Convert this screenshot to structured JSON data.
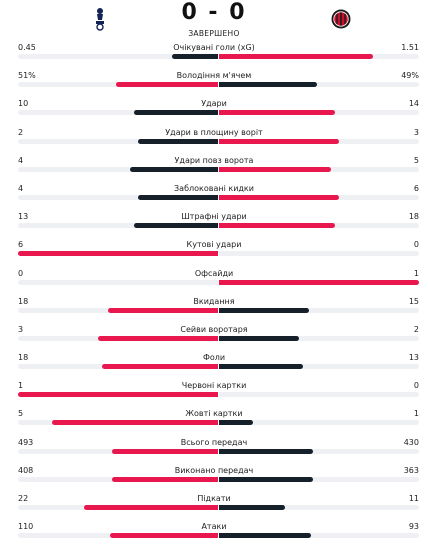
{
  "match": {
    "score": "0 - 0",
    "status": "ЗАВЕРШЕНО",
    "home_crest_icon": "tottenham-crest-icon",
    "away_crest_icon": "milan-crest-icon"
  },
  "colors": {
    "leader": "#e8184f",
    "trailer": "#15202b",
    "track": "#eef0f3"
  },
  "stats": [
    {
      "label": "Очікувані голи (xG)",
      "home": "0.45",
      "away": "1.51",
      "home_share": 0.23,
      "away_share": 0.77
    },
    {
      "label": "Володіння м'ячем",
      "home": "51%",
      "away": "49%",
      "home_share": 0.51,
      "away_share": 0.49
    },
    {
      "label": "Удари",
      "home": "10",
      "away": "14",
      "home_share": 0.42,
      "away_share": 0.58
    },
    {
      "label": "Удари в площину воріт",
      "home": "2",
      "away": "3",
      "home_share": 0.4,
      "away_share": 0.6
    },
    {
      "label": "Удари повз ворота",
      "home": "4",
      "away": "5",
      "home_share": 0.44,
      "away_share": 0.56
    },
    {
      "label": "Заблоковані кидки",
      "home": "4",
      "away": "6",
      "home_share": 0.4,
      "away_share": 0.6
    },
    {
      "label": "Штрафні удари",
      "home": "13",
      "away": "18",
      "home_share": 0.42,
      "away_share": 0.58
    },
    {
      "label": "Кутові удари",
      "home": "6",
      "away": "0",
      "home_share": 1.0,
      "away_share": 0.0
    },
    {
      "label": "Офсайди",
      "home": "0",
      "away": "1",
      "home_share": 0.0,
      "away_share": 1.0
    },
    {
      "label": "Вкидання",
      "home": "18",
      "away": "15",
      "home_share": 0.55,
      "away_share": 0.45
    },
    {
      "label": "Сейви воротаря",
      "home": "3",
      "away": "2",
      "home_share": 0.6,
      "away_share": 0.4
    },
    {
      "label": "Фоли",
      "home": "18",
      "away": "13",
      "home_share": 0.58,
      "away_share": 0.42
    },
    {
      "label": "Червоні картки",
      "home": "1",
      "away": "0",
      "home_share": 1.0,
      "away_share": 0.0
    },
    {
      "label": "Жовті картки",
      "home": "5",
      "away": "1",
      "home_share": 0.83,
      "away_share": 0.17
    },
    {
      "label": "Всього передач",
      "home": "493",
      "away": "430",
      "home_share": 0.53,
      "away_share": 0.47
    },
    {
      "label": "Виконано передач",
      "home": "408",
      "away": "363",
      "home_share": 0.53,
      "away_share": 0.47
    },
    {
      "label": "Підкати",
      "home": "22",
      "away": "11",
      "home_share": 0.67,
      "away_share": 0.33
    },
    {
      "label": "Атаки",
      "home": "110",
      "away": "93",
      "home_share": 0.54,
      "away_share": 0.46
    }
  ]
}
